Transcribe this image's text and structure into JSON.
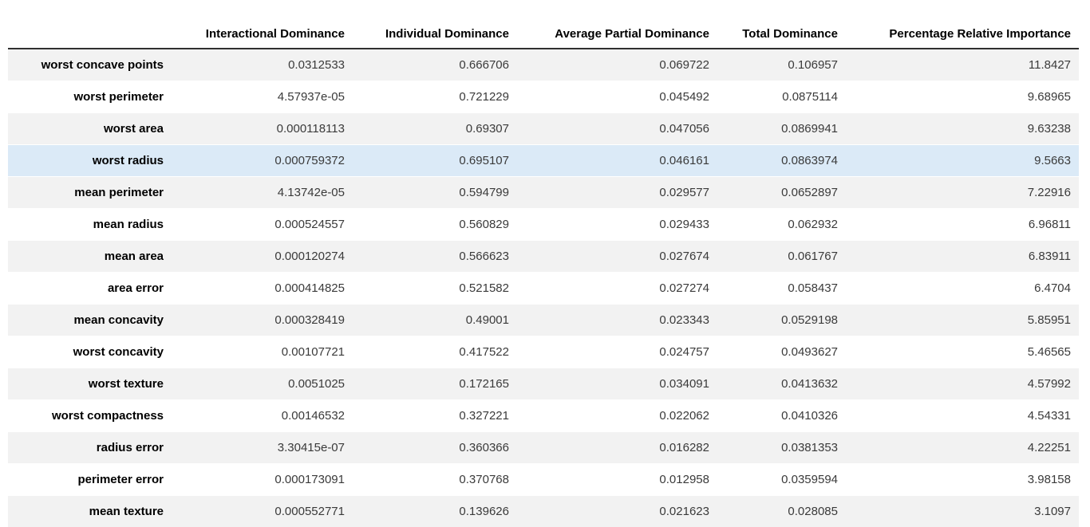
{
  "chart_data": {
    "type": "table",
    "title": "",
    "columns": [
      "",
      "Interactional Dominance",
      "Individual Dominance",
      "Average Partial Dominance",
      "Total Dominance",
      "Percentage Relative Importance"
    ],
    "row_labels": [
      "worst concave points",
      "worst perimeter",
      "worst area",
      "worst radius",
      "mean perimeter",
      "mean radius",
      "mean area",
      "area error",
      "mean concavity",
      "worst concavity",
      "worst texture",
      "worst compactness",
      "radius error",
      "perimeter error",
      "mean texture"
    ],
    "rows": [
      [
        "0.0312533",
        "0.666706",
        "0.069722",
        "0.106957",
        "11.8427"
      ],
      [
        "4.57937e-05",
        "0.721229",
        "0.045492",
        "0.0875114",
        "9.68965"
      ],
      [
        "0.000118113",
        "0.69307",
        "0.047056",
        "0.0869941",
        "9.63238"
      ],
      [
        "0.000759372",
        "0.695107",
        "0.046161",
        "0.0863974",
        "9.5663"
      ],
      [
        "4.13742e-05",
        "0.594799",
        "0.029577",
        "0.0652897",
        "7.22916"
      ],
      [
        "0.000524557",
        "0.560829",
        "0.029433",
        "0.062932",
        "6.96811"
      ],
      [
        "0.000120274",
        "0.566623",
        "0.027674",
        "0.061767",
        "6.83911"
      ],
      [
        "0.000414825",
        "0.521582",
        "0.027274",
        "0.058437",
        "6.4704"
      ],
      [
        "0.000328419",
        "0.49001",
        "0.023343",
        "0.0529198",
        "5.85951"
      ],
      [
        "0.00107721",
        "0.417522",
        "0.024757",
        "0.0493627",
        "5.46565"
      ],
      [
        "0.0051025",
        "0.172165",
        "0.034091",
        "0.0413632",
        "4.57992"
      ],
      [
        "0.00146532",
        "0.327221",
        "0.022062",
        "0.0410326",
        "4.54331"
      ],
      [
        "3.30415e-07",
        "0.360366",
        "0.016282",
        "0.0381353",
        "4.22251"
      ],
      [
        "0.000173091",
        "0.370768",
        "0.012958",
        "0.0359594",
        "3.98158"
      ],
      [
        "0.000552771",
        "0.139626",
        "0.021623",
        "0.028085",
        "3.1097"
      ]
    ],
    "highlighted_row_index": 3,
    "striped": true,
    "stripe_pattern": "odd-rows-gray-starting-first",
    "layout": {
      "grid": false,
      "vertical_borders": false,
      "header_rule": true
    }
  },
  "colors": {
    "stripe_row_bg": "#f2f2f2",
    "highlight_row_bg": "#dbeaf7",
    "header_border": "#2f2f2f",
    "label_text": "#000000",
    "value_text": "#3a3a3a",
    "background": "#ffffff"
  }
}
